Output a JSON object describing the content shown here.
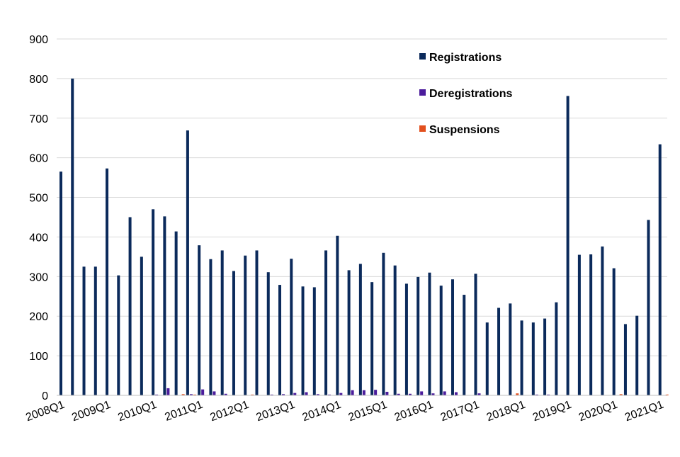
{
  "chart_data": {
    "type": "bar",
    "title": "",
    "xlabel": "",
    "ylabel": "",
    "ylim": [
      0,
      900
    ],
    "yticks": [
      0,
      100,
      200,
      300,
      400,
      500,
      600,
      700,
      800,
      900
    ],
    "grid": true,
    "legend_position": "top-right",
    "categories": [
      "2008Q1",
      "2008Q2",
      "2008Q3",
      "2008Q4",
      "2009Q1",
      "2009Q2",
      "2009Q3",
      "2009Q4",
      "2010Q1",
      "2010Q2",
      "2010Q3",
      "2010Q4",
      "2011Q1",
      "2011Q2",
      "2011Q3",
      "2011Q4",
      "2012Q1",
      "2012Q2",
      "2012Q3",
      "2012Q4",
      "2013Q1",
      "2013Q2",
      "2013Q3",
      "2013Q4",
      "2014Q1",
      "2014Q2",
      "2014Q3",
      "2014Q4",
      "2015Q1",
      "2015Q2",
      "2015Q3",
      "2015Q4",
      "2016Q1",
      "2016Q2",
      "2016Q3",
      "2016Q4",
      "2017Q1",
      "2017Q2",
      "2017Q3",
      "2017Q4",
      "2018Q1",
      "2018Q2",
      "2018Q3",
      "2018Q4",
      "2019Q1",
      "2019Q2",
      "2019Q3",
      "2019Q4",
      "2020Q1",
      "2020Q2",
      "2020Q3",
      "2020Q4",
      "2021Q1"
    ],
    "x_tick_labels": [
      {
        "index": 0,
        "label": "2008Q1"
      },
      {
        "index": 4,
        "label": "2009Q1"
      },
      {
        "index": 8,
        "label": "2010Q1"
      },
      {
        "index": 12,
        "label": "2011Q1"
      },
      {
        "index": 16,
        "label": "2012Q1"
      },
      {
        "index": 20,
        "label": "2013Q1"
      },
      {
        "index": 24,
        "label": "2014Q1"
      },
      {
        "index": 28,
        "label": "2015Q1"
      },
      {
        "index": 32,
        "label": "2016Q1"
      },
      {
        "index": 36,
        "label": "2017Q1"
      },
      {
        "index": 40,
        "label": "2018Q1"
      },
      {
        "index": 44,
        "label": "2019Q1"
      },
      {
        "index": 48,
        "label": "2020Q1"
      },
      {
        "index": 52,
        "label": "2021Q1"
      }
    ],
    "series": [
      {
        "name": "Registrations",
        "color": "#0b2a5b",
        "values": [
          565,
          800,
          325,
          325,
          573,
          303,
          450,
          350,
          470,
          452,
          414,
          669,
          379,
          344,
          366,
          314,
          353,
          366,
          311,
          279,
          345,
          275,
          273,
          366,
          403,
          316,
          332,
          286,
          360,
          328,
          282,
          299,
          310,
          277,
          293,
          254,
          307,
          184,
          221,
          232,
          189,
          184,
          194,
          235,
          756,
          355,
          356,
          376,
          321,
          180,
          201,
          443,
          634
        ]
      },
      {
        "name": "Deregistrations",
        "color": "#4b1c9c",
        "values": [
          0,
          0,
          0,
          0,
          0,
          0,
          0,
          0,
          2,
          18,
          0,
          3,
          15,
          10,
          4,
          0,
          0,
          0,
          2,
          3,
          6,
          8,
          3,
          2,
          6,
          13,
          13,
          14,
          9,
          4,
          4,
          10,
          5,
          10,
          8,
          0,
          5,
          0,
          0,
          0,
          0,
          2,
          2,
          0,
          0,
          0,
          0,
          0,
          0,
          0,
          0,
          0,
          0
        ]
      },
      {
        "name": "Suspensions",
        "color": "#e2501e",
        "values": [
          0,
          0,
          0,
          0,
          0,
          0,
          0,
          0,
          0,
          0,
          3,
          2,
          0,
          0,
          0,
          0,
          2,
          0,
          0,
          0,
          0,
          0,
          0,
          0,
          0,
          0,
          0,
          0,
          0,
          0,
          0,
          0,
          0,
          0,
          0,
          0,
          0,
          0,
          0,
          5,
          0,
          0,
          0,
          0,
          0,
          0,
          0,
          0,
          3,
          0,
          0,
          0,
          2
        ]
      }
    ]
  }
}
